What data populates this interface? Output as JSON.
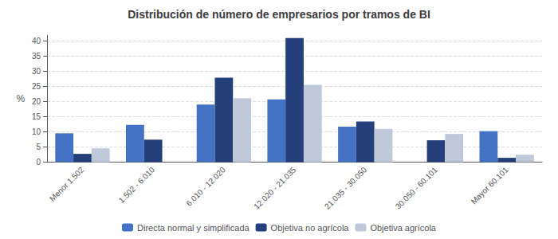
{
  "chart_data": {
    "type": "bar",
    "title": "Distribución de número de empresarios por tramos de BI",
    "categories": [
      "Menor 1.502",
      "1.502 - 6.010",
      "6.010 - 12.020",
      "12.020 - 21.035",
      "21.035 - 30.050",
      "30.050 - 60.101",
      "Mayor 60.101"
    ],
    "series": [
      {
        "name": "Directa normal y simplificada",
        "color": "#4472c4",
        "values": [
          9.5,
          12.3,
          19.0,
          20.7,
          11.7,
          0.0,
          10.2
        ]
      },
      {
        "name": "Objetiva no agrícola",
        "color": "#243f7a",
        "values": [
          2.7,
          7.4,
          27.9,
          41.0,
          13.4,
          7.2,
          1.4
        ]
      },
      {
        "name": "Objetiva agrícola",
        "color": "#bfc9d9",
        "values": [
          4.5,
          0.0,
          21.1,
          25.5,
          11.0,
          9.3,
          2.4
        ]
      }
    ],
    "ylabel": "%",
    "ylim": [
      0,
      42
    ],
    "yticks": [
      0,
      5,
      10,
      15,
      20,
      25,
      30,
      35,
      40
    ],
    "grid": true,
    "legend": "bottom"
  }
}
